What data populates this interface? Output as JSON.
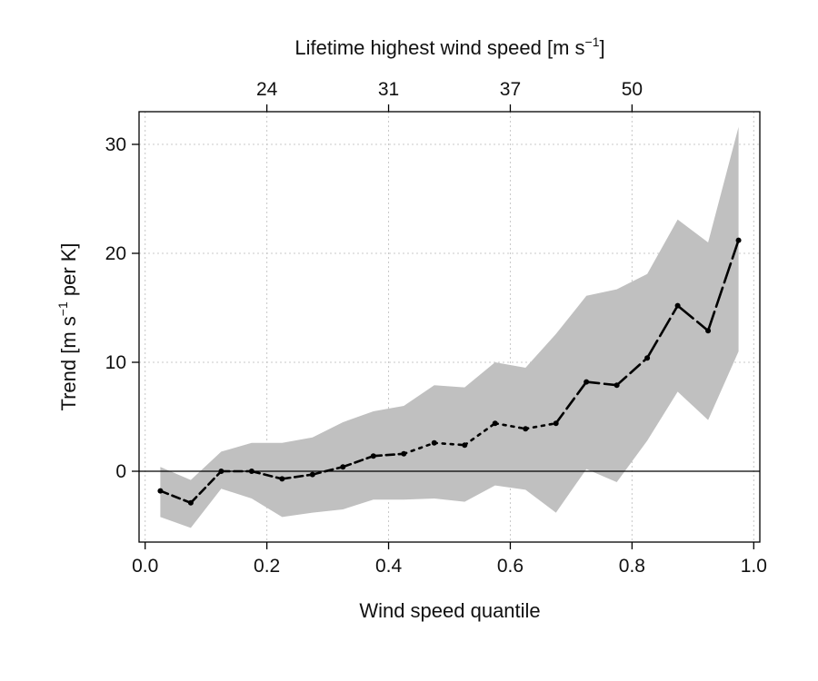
{
  "chart_data": {
    "type": "line",
    "title": "",
    "xlabel": "Wind speed quantile",
    "ylabel_parts": [
      "Trend [m s",
      "−1",
      " per K]"
    ],
    "top_xlabel_parts": [
      "Lifetime highest wind speed [m s",
      "−1",
      "]"
    ],
    "xlim": [
      -0.01,
      1.01
    ],
    "ylim": [
      -6.5,
      33
    ],
    "x_ticks": [
      0.0,
      0.2,
      0.4,
      0.6,
      0.8,
      1.0
    ],
    "x_tick_labels": [
      "0.0",
      "0.2",
      "0.4",
      "0.6",
      "0.8",
      "1.0"
    ],
    "y_ticks": [
      0,
      10,
      20,
      30
    ],
    "y_tick_labels": [
      "0",
      "10",
      "20",
      "30"
    ],
    "top_ticks": [
      0.2,
      0.4,
      0.6,
      0.8
    ],
    "top_tick_labels": [
      "24",
      "31",
      "37",
      "50"
    ],
    "grid": true,
    "zero_line": true,
    "colors": {
      "band": "#c0c0c0",
      "line": "#000000",
      "grid": "#c8c8c8",
      "axis": "#000000"
    },
    "x": [
      0.025,
      0.075,
      0.125,
      0.175,
      0.225,
      0.275,
      0.325,
      0.375,
      0.425,
      0.475,
      0.525,
      0.575,
      0.625,
      0.675,
      0.725,
      0.775,
      0.825,
      0.875,
      0.925,
      0.975
    ],
    "series": [
      {
        "values": [
          -1.8,
          -2.9,
          0.0,
          0.0,
          -0.7,
          -0.3,
          0.4,
          1.4,
          1.6,
          2.6,
          2.4,
          4.4,
          3.9,
          4.4,
          8.2,
          7.9,
          10.4,
          15.2,
          12.9,
          21.2
        ]
      }
    ],
    "band_upper": [
      0.4,
      -0.8,
      1.8,
      2.6,
      2.6,
      3.1,
      4.5,
      5.5,
      6.0,
      7.9,
      7.7,
      10.0,
      9.5,
      12.6,
      16.1,
      16.7,
      18.1,
      23.1,
      21.0,
      31.6
    ],
    "band_lower": [
      -4.2,
      -5.2,
      -1.6,
      -2.5,
      -4.2,
      -3.8,
      -3.5,
      -2.6,
      -2.6,
      -2.5,
      -2.8,
      -1.3,
      -1.7,
      -3.8,
      0.2,
      -1.0,
      2.8,
      7.3,
      4.7,
      11.0
    ]
  }
}
